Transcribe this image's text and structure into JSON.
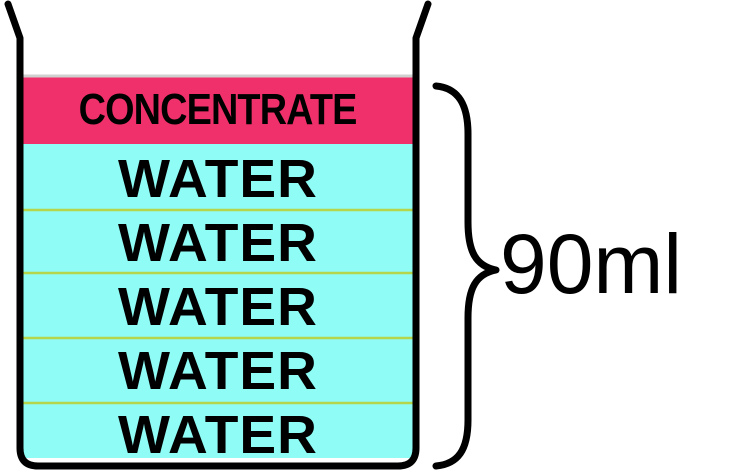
{
  "layers": {
    "concentrate": {
      "label": "CONCENTRATE",
      "color": "#f0306a"
    },
    "water": [
      {
        "label": "WATER"
      },
      {
        "label": "WATER"
      },
      {
        "label": "WATER"
      },
      {
        "label": "WATER"
      },
      {
        "label": "WATER"
      }
    ],
    "water_color": "#8ffcf6",
    "divider_color": "#b5d64a"
  },
  "volume_label": "90ml"
}
